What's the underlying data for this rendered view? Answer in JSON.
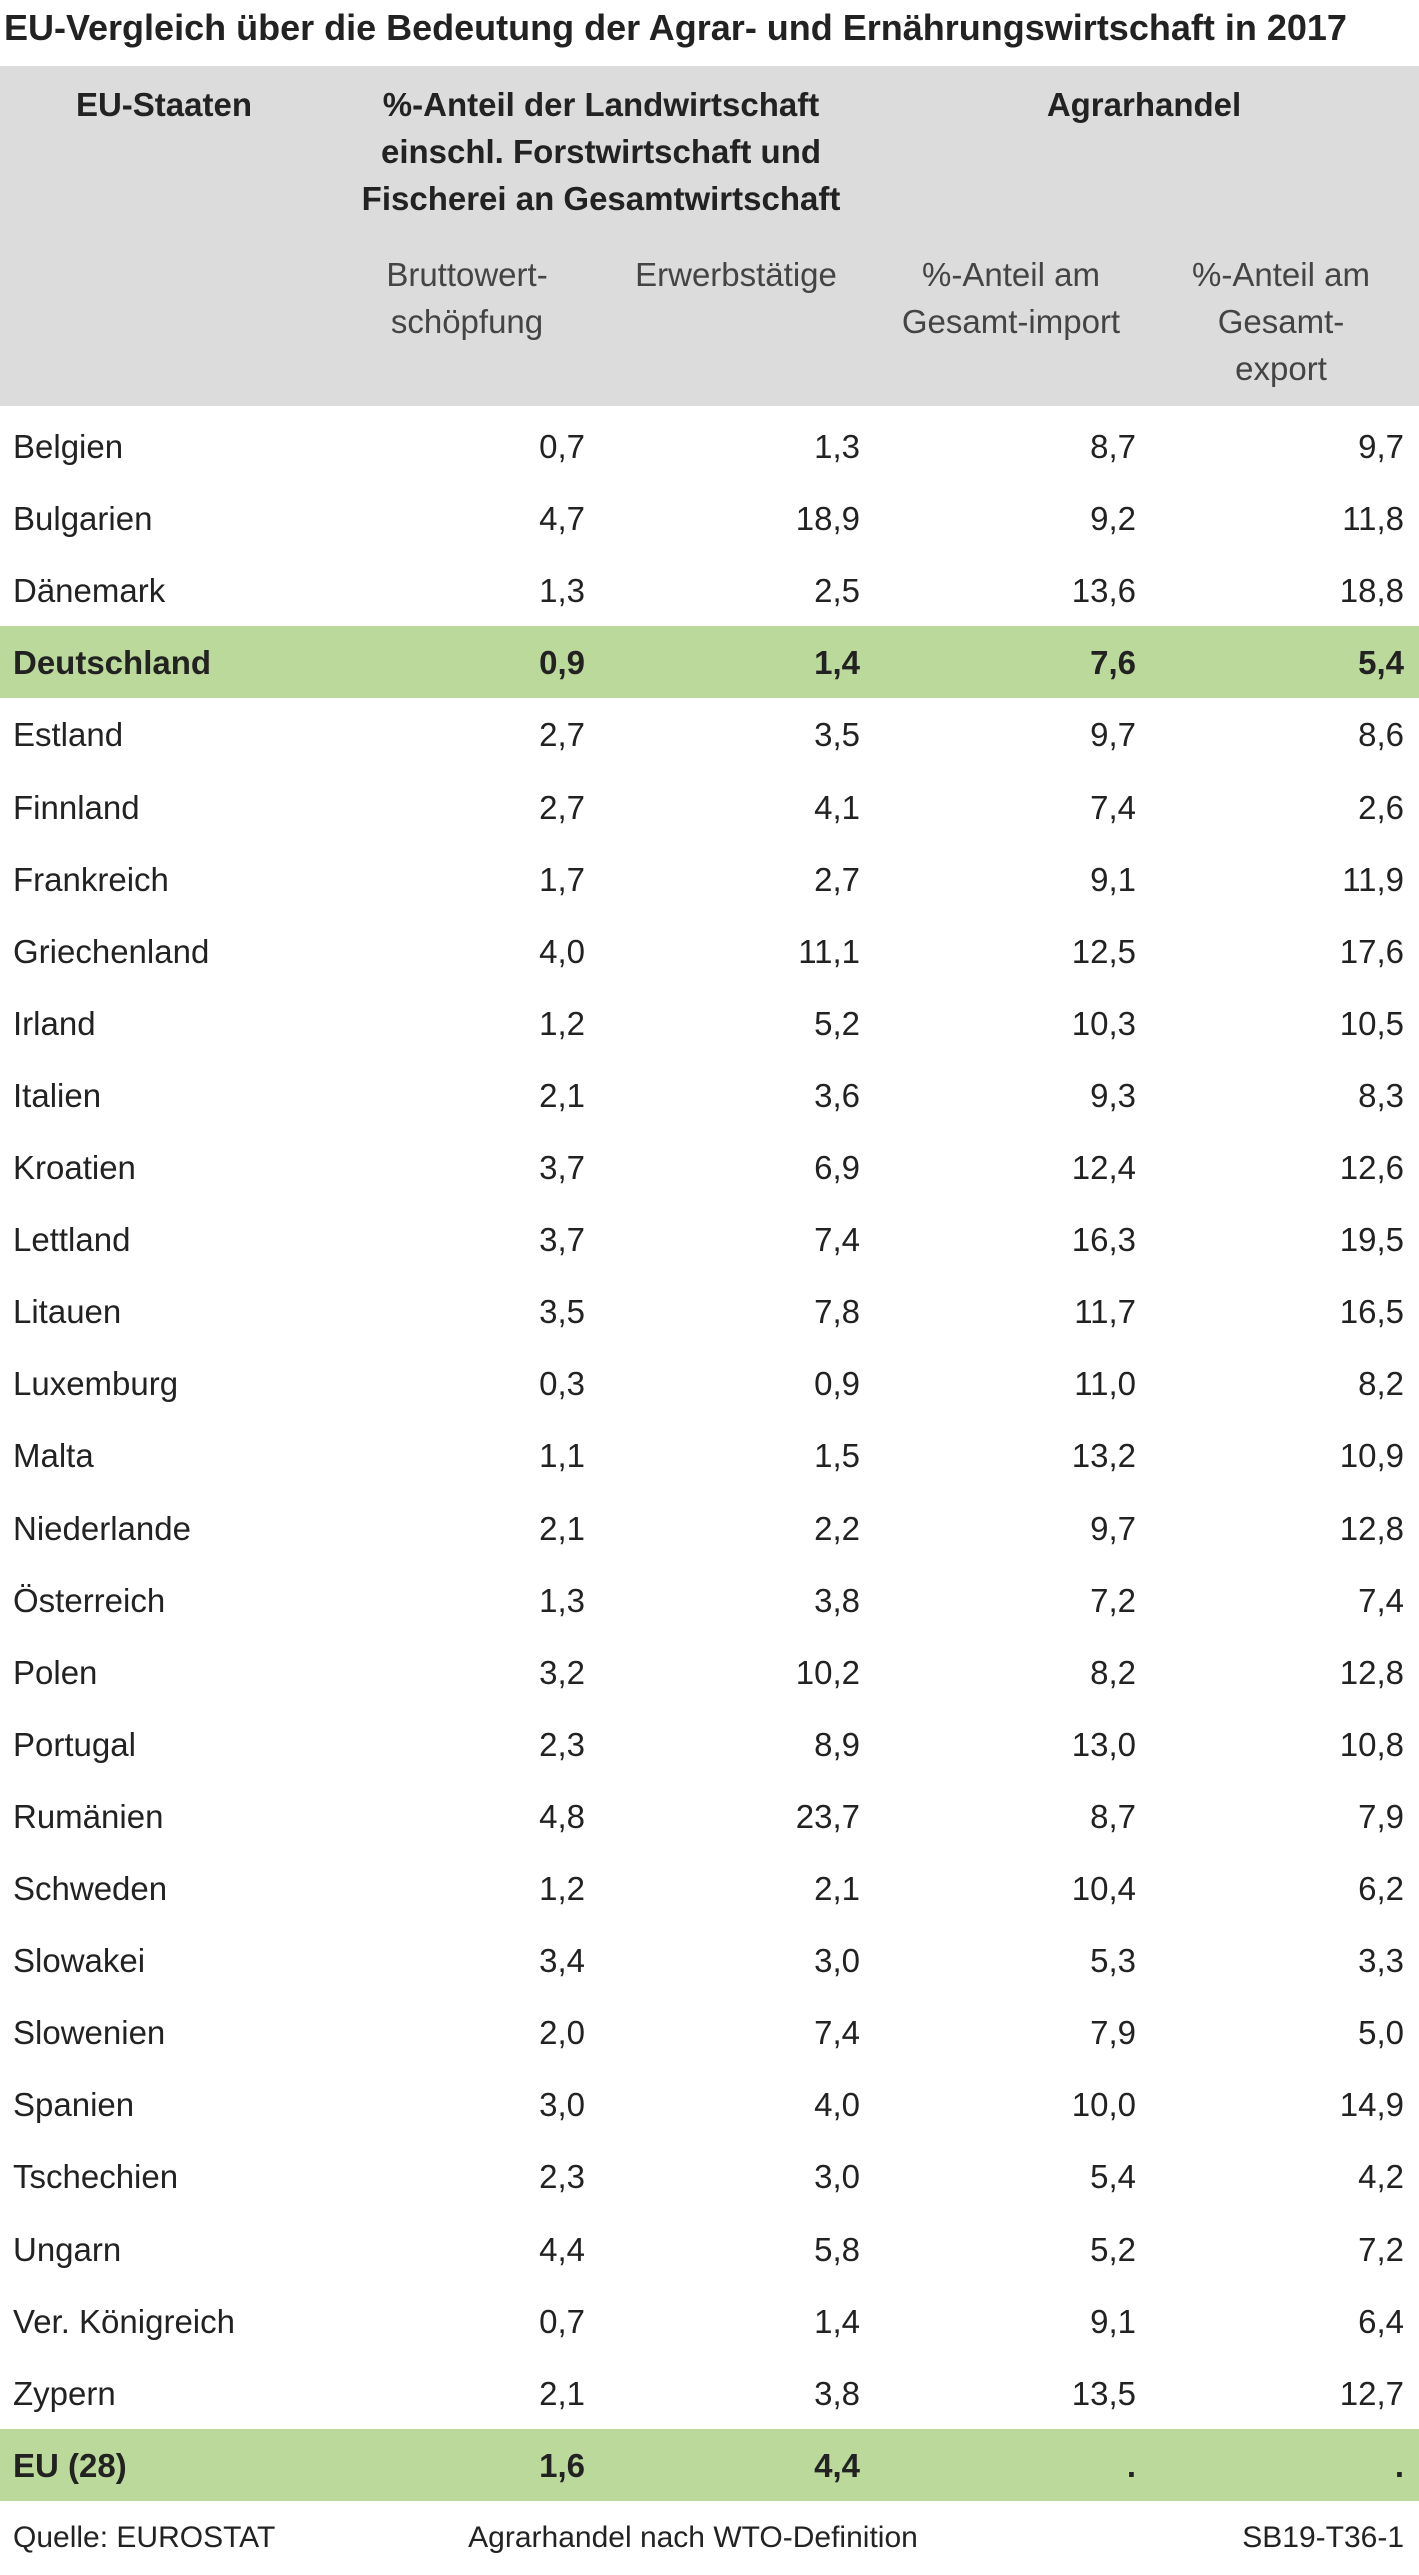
{
  "title": "EU-Vergleich über die Bedeutung der Agrar- und Ernährungswirtschaft in 2017",
  "header": {
    "first": "EU-Staaten",
    "group1": [
      "%-Anteil der Landwirtschaft",
      "einschl. Forstwirtschaft und",
      "Fischerei an Gesamtwirtschaft"
    ],
    "group2": "Agrarhandel",
    "columns": [
      [
        "Bruttowert-",
        "schöpfung"
      ],
      [
        "Erwerbstätige"
      ],
      [
        "%-Anteil am",
        "Gesamt-import"
      ],
      [
        "%-Anteil am",
        "Gesamt-",
        "export"
      ]
    ]
  },
  "highlight_color": "#bcd99c",
  "header_color": "#dcdcdc",
  "table": {
    "rows": [
      {
        "cells": [
          "Belgien",
          "0,7",
          "1,3",
          "8,7",
          "9,7"
        ]
      },
      {
        "cells": [
          "Bulgarien",
          "4,7",
          "18,9",
          "9,2",
          "11,8"
        ]
      },
      {
        "cells": [
          "Dänemark",
          "1,3",
          "2,5",
          "13,6",
          "18,8"
        ]
      },
      {
        "cells": [
          "Deutschland",
          "0,9",
          "1,4",
          "7,6",
          "5,4"
        ],
        "highlight": true
      },
      {
        "cells": [
          "Estland",
          "2,7",
          "3,5",
          "9,7",
          "8,6"
        ]
      },
      {
        "cells": [
          "Finnland",
          "2,7",
          "4,1",
          "7,4",
          "2,6"
        ]
      },
      {
        "cells": [
          "Frankreich",
          "1,7",
          "2,7",
          "9,1",
          "11,9"
        ]
      },
      {
        "cells": [
          "Griechenland",
          "4,0",
          "11,1",
          "12,5",
          "17,6"
        ]
      },
      {
        "cells": [
          "Irland",
          "1,2",
          "5,2",
          "10,3",
          "10,5"
        ]
      },
      {
        "cells": [
          "Italien",
          "2,1",
          "3,6",
          "9,3",
          "8,3"
        ]
      },
      {
        "cells": [
          "Kroatien",
          "3,7",
          "6,9",
          "12,4",
          "12,6"
        ]
      },
      {
        "cells": [
          "Lettland",
          "3,7",
          "7,4",
          "16,3",
          "19,5"
        ]
      },
      {
        "cells": [
          "Litauen",
          "3,5",
          "7,8",
          "11,7",
          "16,5"
        ]
      },
      {
        "cells": [
          "Luxemburg",
          "0,3",
          "0,9",
          "11,0",
          "8,2"
        ]
      },
      {
        "cells": [
          "Malta",
          "1,1",
          "1,5",
          "13,2",
          "10,9"
        ]
      },
      {
        "cells": [
          "Niederlande",
          "2,1",
          "2,2",
          "9,7",
          "12,8"
        ]
      },
      {
        "cells": [
          "Österreich",
          "1,3",
          "3,8",
          "7,2",
          "7,4"
        ]
      },
      {
        "cells": [
          "Polen",
          "3,2",
          "10,2",
          "8,2",
          "12,8"
        ]
      },
      {
        "cells": [
          "Portugal",
          "2,3",
          "8,9",
          "13,0",
          "10,8"
        ]
      },
      {
        "cells": [
          "Rumänien",
          "4,8",
          "23,7",
          "8,7",
          "7,9"
        ]
      },
      {
        "cells": [
          "Schweden",
          "1,2",
          "2,1",
          "10,4",
          "6,2"
        ]
      },
      {
        "cells": [
          "Slowakei",
          "3,4",
          "3,0",
          "5,3",
          "3,3"
        ]
      },
      {
        "cells": [
          "Slowenien",
          "2,0",
          "7,4",
          "7,9",
          "5,0"
        ]
      },
      {
        "cells": [
          "Spanien",
          "3,0",
          "4,0",
          "10,0",
          "14,9"
        ]
      },
      {
        "cells": [
          "Tschechien",
          "2,3",
          "3,0",
          "5,4",
          "4,2"
        ]
      },
      {
        "cells": [
          "Ungarn",
          "4,4",
          "5,8",
          "5,2",
          "7,2"
        ]
      },
      {
        "cells": [
          "Ver. Königreich",
          "0,7",
          "1,4",
          "9,1",
          "6,4"
        ]
      },
      {
        "cells": [
          "Zypern",
          "2,1",
          "3,8",
          "13,5",
          "12,7"
        ]
      },
      {
        "cells": [
          "EU (28)",
          "1,6",
          "4,4",
          ".",
          "."
        ],
        "highlight": true
      }
    ]
  },
  "footer": {
    "left": "Quelle: EUROSTAT",
    "center": "Agrarhandel nach WTO-Definition",
    "right": "SB19-T36-1"
  }
}
